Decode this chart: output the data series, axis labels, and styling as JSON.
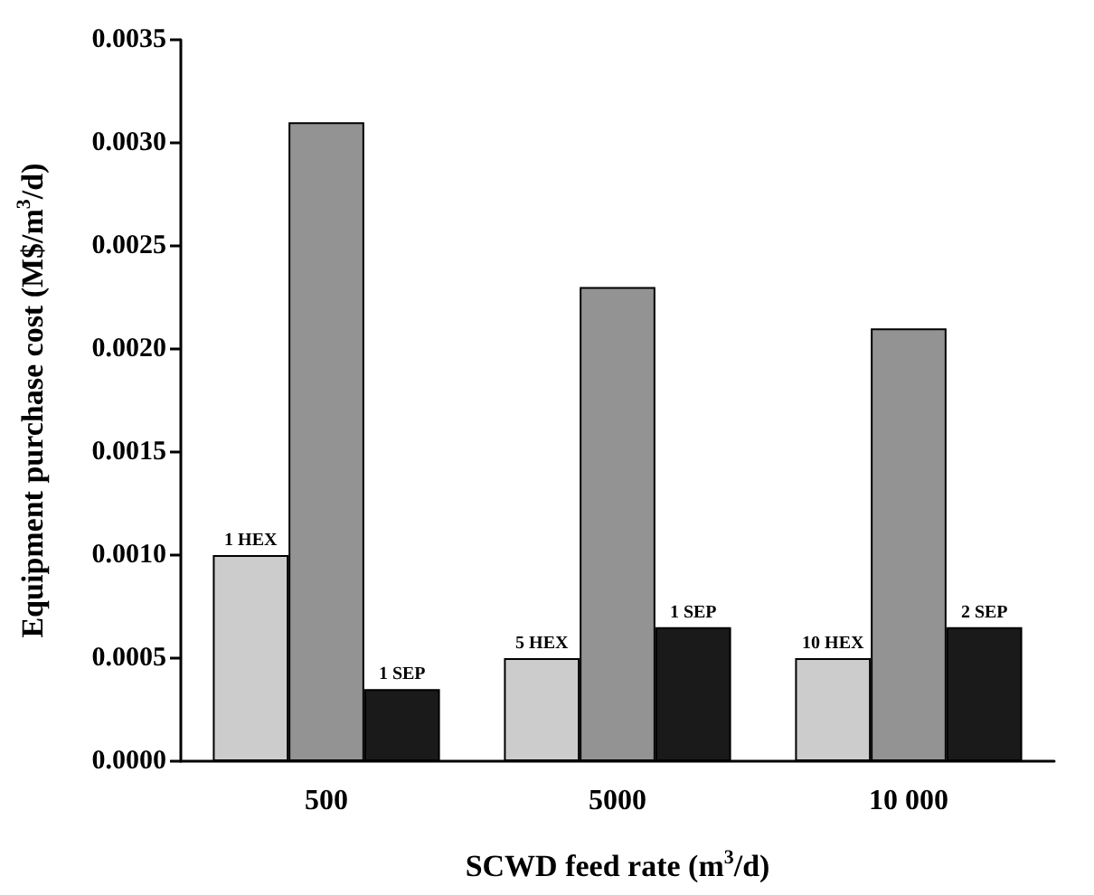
{
  "chart_data": {
    "type": "bar",
    "xlabel": "SCWD feed rate (m$^{3}$/d)",
    "ylabel": "Equipment purchase cost (M$/m$^{3}$/d)",
    "categories": [
      "500",
      "5000",
      "10 000"
    ],
    "series": [
      {
        "color": "#cccccc",
        "values": [
          0.001,
          0.0005,
          0.0005
        ]
      },
      {
        "color": "#939393",
        "values": [
          0.0031,
          0.0023,
          0.0021
        ]
      },
      {
        "color": "#1a1a1a",
        "values": [
          0.00035,
          0.00065,
          0.00065
        ]
      }
    ],
    "ylim": [
      0,
      0.0035
    ],
    "yticks": [
      {
        "value": 0,
        "label": "0.0000"
      },
      {
        "value": 0.0005,
        "label": "0.0005"
      },
      {
        "value": 0.001,
        "label": "0.0010"
      },
      {
        "value": 0.0015,
        "label": "0.0015"
      },
      {
        "value": 0.002,
        "label": "0.0020"
      },
      {
        "value": 0.0025,
        "label": "0.0025"
      },
      {
        "value": 0.003,
        "label": "0.0030"
      },
      {
        "value": 0.0035,
        "label": "0.0035"
      }
    ],
    "annotations": [
      "1 HEX",
      "1 SEP",
      "5 HEX",
      "1 SEP",
      "10 HEX",
      "2 SEP"
    ],
    "grid": false
  }
}
